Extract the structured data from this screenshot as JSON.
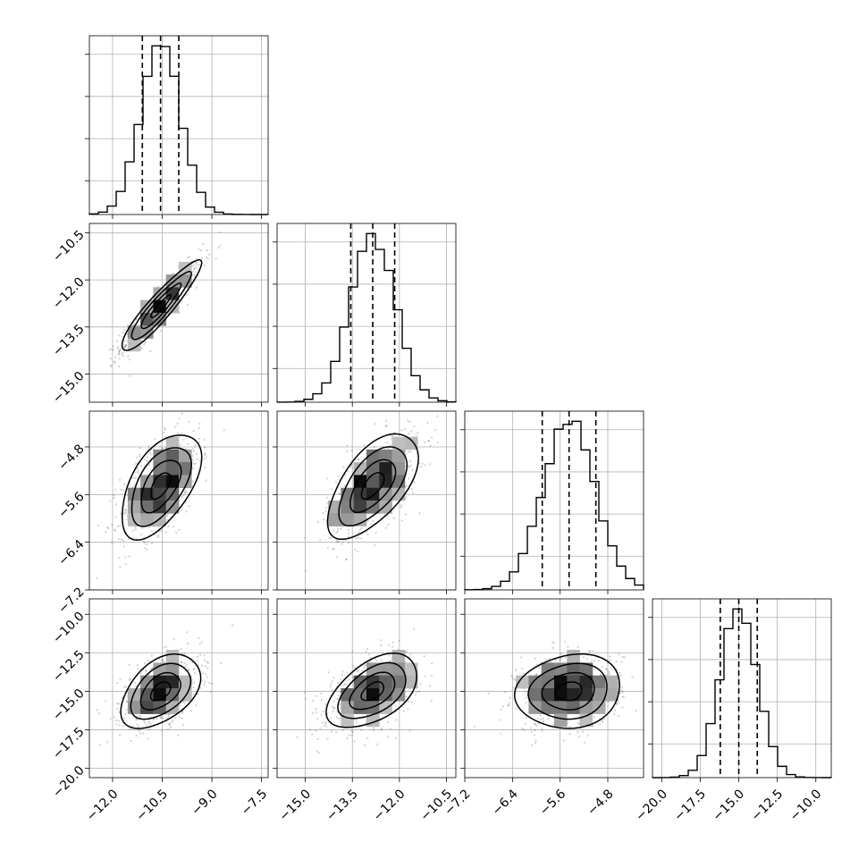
{
  "chart_data": {
    "type": "corner",
    "parameters": 4,
    "grid": true,
    "quantiles": [
      0.16,
      0.5,
      0.84
    ],
    "axes": [
      {
        "ticks": [
          -12.0,
          -10.5,
          -9.0,
          -7.5
        ],
        "tick_labels": [
          "−12.0",
          "−10.5",
          "−9.0",
          "−7.5"
        ],
        "range": [
          -12.7,
          -7.3
        ],
        "mean": -10.55,
        "sigma": 0.6,
        "quantile_values": [
          -11.1,
          -10.55,
          -10.0
        ]
      },
      {
        "ticks": [
          -15.0,
          -13.5,
          -12.0,
          -10.5
        ],
        "tick_labels": [
          "−15.0",
          "−13.5",
          "−12.0",
          "−10.5"
        ],
        "range": [
          -15.9,
          -10.2
        ],
        "mean": -12.85,
        "sigma": 0.72,
        "quantile_values": [
          -13.55,
          -12.85,
          -12.15
        ]
      },
      {
        "ticks": [
          -7.2,
          -6.4,
          -5.6,
          -4.8
        ],
        "tick_labels": [
          "−7.2",
          "−6.4",
          "−5.6",
          "−4.8"
        ],
        "range": [
          -7.2,
          -4.2
        ],
        "mean": -5.45,
        "sigma": 0.44,
        "quantile_values": [
          -5.9,
          -5.45,
          -5.0
        ]
      },
      {
        "ticks": [
          -20.0,
          -17.5,
          -15.0,
          -12.5,
          -10.0
        ],
        "tick_labels": [
          "−20.0",
          "−17.5",
          "−15.0",
          "−12.5",
          "−10.0"
        ],
        "range": [
          -20.6,
          -9.0
        ],
        "mean": -15.0,
        "sigma": 1.2,
        "quantile_values": [
          -16.2,
          -15.0,
          -13.8
        ]
      }
    ],
    "correlations": {
      "1-0": 0.92,
      "2-0": 0.55,
      "2-1": 0.6,
      "3-0": 0.45,
      "3-1": 0.5,
      "3-2": 0.12
    }
  }
}
